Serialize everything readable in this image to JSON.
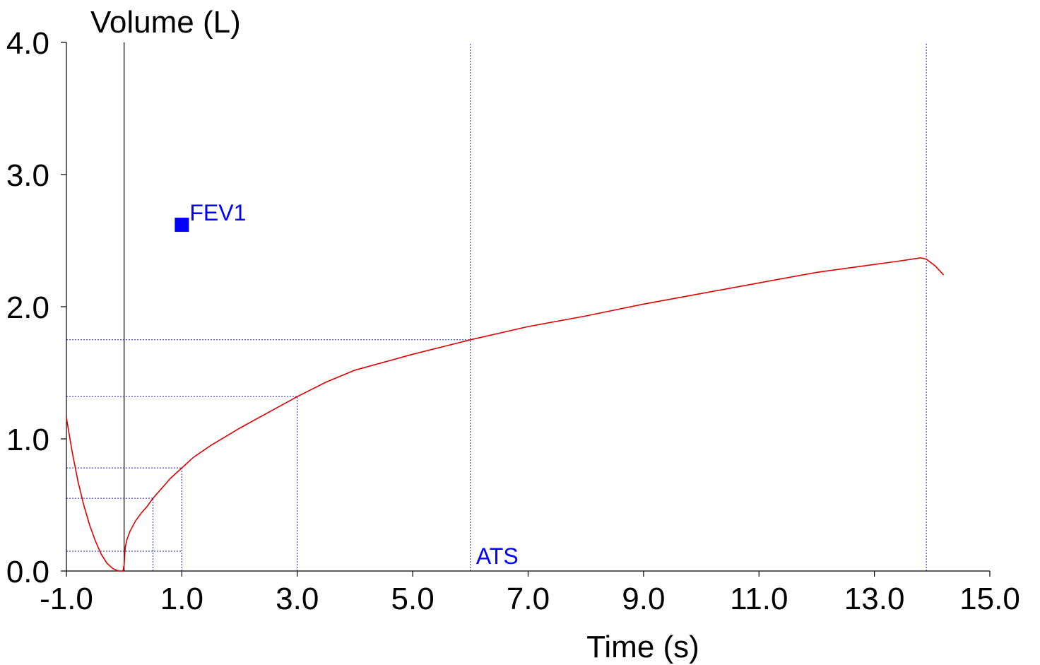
{
  "chart_data": {
    "type": "line",
    "title": "",
    "ylabel": "Volume (L)",
    "xlabel": "Time (s)",
    "xlim": [
      -1.0,
      15.0
    ],
    "ylim": [
      0.0,
      4.0
    ],
    "x_ticks": [
      -1.0,
      1.0,
      3.0,
      5.0,
      7.0,
      9.0,
      11.0,
      13.0,
      15.0
    ],
    "x_tick_labels": [
      "-1.0",
      "1.0",
      "3.0",
      "5.0",
      "7.0",
      "9.0",
      "11.0",
      "13.0",
      "15.0"
    ],
    "y_ticks": [
      0.0,
      1.0,
      2.0,
      3.0,
      4.0
    ],
    "y_tick_labels": [
      "0.0",
      "1.0",
      "2.0",
      "3.0",
      "4.0"
    ],
    "grid": false,
    "zero_line_x": 0.0,
    "series": [
      {
        "name": "volume-time curve",
        "color": "#e00000",
        "x": [
          -1.0,
          -0.9,
          -0.8,
          -0.7,
          -0.6,
          -0.5,
          -0.4,
          -0.3,
          -0.2,
          -0.1,
          -0.02,
          0.0,
          0.02,
          0.05,
          0.1,
          0.2,
          0.3,
          0.4,
          0.5,
          0.6,
          0.7,
          0.8,
          0.9,
          1.0,
          1.2,
          1.5,
          2.0,
          2.5,
          3.0,
          3.5,
          4.0,
          5.0,
          6.0,
          7.0,
          8.0,
          9.0,
          10.0,
          11.0,
          12.0,
          13.0,
          13.5,
          13.8,
          13.9,
          14.05,
          14.2
        ],
        "values": [
          1.16,
          0.9,
          0.68,
          0.5,
          0.35,
          0.23,
          0.13,
          0.06,
          0.02,
          0.0,
          0.0,
          0.05,
          0.18,
          0.24,
          0.3,
          0.38,
          0.44,
          0.49,
          0.55,
          0.6,
          0.65,
          0.7,
          0.74,
          0.78,
          0.86,
          0.95,
          1.08,
          1.2,
          1.32,
          1.43,
          1.52,
          1.64,
          1.75,
          1.85,
          1.93,
          2.02,
          2.1,
          2.18,
          2.26,
          2.32,
          2.35,
          2.37,
          2.36,
          2.31,
          2.24
        ]
      }
    ],
    "reference_lines": {
      "color": "#1c1cd4",
      "vertical": [
        {
          "x": 0.5,
          "y_top": 0.55
        },
        {
          "x": 1.0,
          "y_top": 0.78
        },
        {
          "x": 3.0,
          "y_top": 1.32
        },
        {
          "x": 6.0,
          "y_top": 4.0
        },
        {
          "x": 13.9,
          "y_top": 4.0
        }
      ],
      "horizontal": [
        {
          "y": 0.15,
          "x_end": 1.0
        },
        {
          "y": 0.55,
          "x_end": 0.5
        },
        {
          "y": 0.78,
          "x_end": 1.0
        },
        {
          "y": 1.32,
          "x_end": 3.0
        },
        {
          "y": 1.75,
          "x_end": 6.0
        }
      ]
    },
    "annotations": [
      {
        "name": "fev1-label",
        "text": "FEV1",
        "x": 1.0,
        "y": 2.62,
        "marker": "square",
        "color": "#0000ff"
      },
      {
        "name": "ats-label",
        "text": "ATS",
        "x": 6.0,
        "y": 0.0,
        "color": "#0000ff"
      }
    ]
  }
}
